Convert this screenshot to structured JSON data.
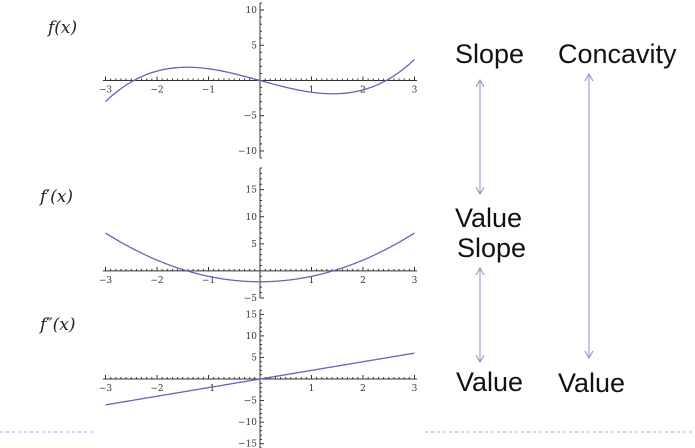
{
  "chart_data": [
    {
      "type": "line",
      "function_label": "f(x)",
      "formula": "x^3/3 - 2x",
      "xlim": [
        -3,
        3
      ],
      "ylim": [
        -11,
        11
      ],
      "x_ticks": [
        "−3",
        "−2",
        "−1",
        "1",
        "2",
        "3"
      ],
      "y_ticks": [
        "10",
        "5",
        "−5",
        "−10"
      ]
    },
    {
      "type": "line",
      "function_label": "f′(x)",
      "formula": "x^2 - 2",
      "xlim": [
        -3,
        3
      ],
      "ylim": [
        -5,
        19
      ],
      "x_ticks": [
        "−3",
        "−2",
        "−1",
        "1",
        "2",
        "3"
      ],
      "y_ticks": [
        "15",
        "10",
        "5",
        "−5"
      ]
    },
    {
      "type": "line",
      "function_label": "f″(x)",
      "formula": "2x",
      "xlim": [
        -3,
        3
      ],
      "ylim": [
        -16,
        16
      ],
      "x_ticks": [
        "−3",
        "−2",
        "−1",
        "1",
        "2",
        "3"
      ],
      "y_ticks": [
        "15",
        "10",
        "5",
        "−5",
        "−10",
        "−15"
      ]
    }
  ],
  "annotations": {
    "slope_1": "Slope",
    "concavity": "Concavity",
    "value_1": "Value",
    "slope_2": "Slope",
    "value_2": "Value",
    "value_3": "Value"
  },
  "colors": {
    "curve": "#6a62b8",
    "arrow": "#8a8fc4"
  }
}
